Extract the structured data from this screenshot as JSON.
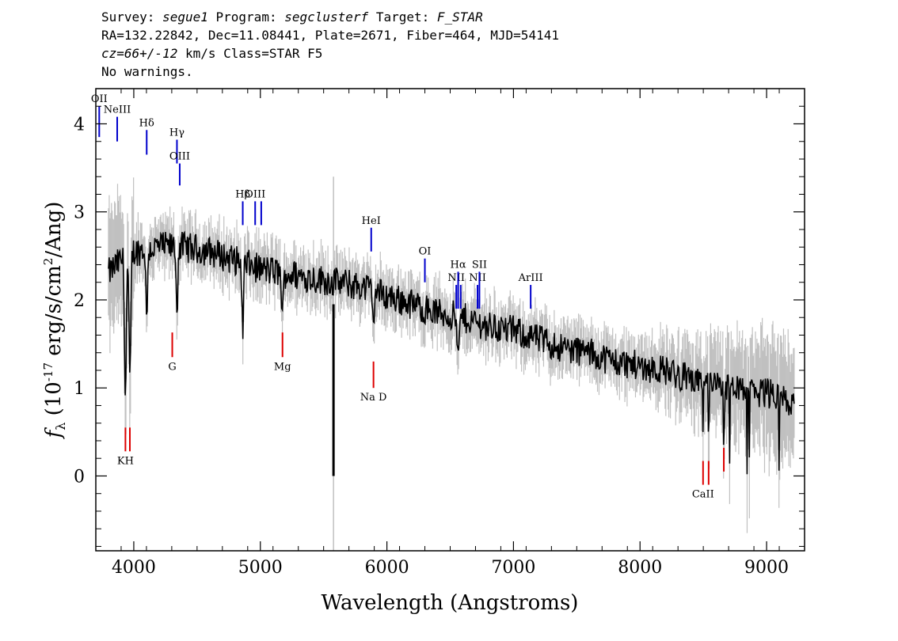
{
  "header": {
    "survey_label": "Survey:",
    "survey": "segue1",
    "program_label": "Program:",
    "program": "segclusterf",
    "target_label": "Target:",
    "target": "F_STAR",
    "line2": "RA=132.22842, Dec=11.08441, Plate=2671, Fiber=464, MJD=54141",
    "cz": "cz=66+/-12",
    "cz_rest": " km/s Class=STAR F5",
    "line4": "No warnings."
  },
  "chart_data": {
    "type": "line",
    "xlabel": "Wavelength (Angstroms)",
    "ylabel_prefix": "f",
    "ylabel_sub": "λ",
    "ylabel_main": " (10",
    "ylabel_exp": "-17",
    "ylabel_unit": " erg/s/cm",
    "ylabel_sq": "2",
    "ylabel_end": "/Ang)",
    "xlim": [
      3700,
      9300
    ],
    "ylim": [
      -0.85,
      4.4
    ],
    "x_ticks": [
      4000,
      5000,
      6000,
      7000,
      8000,
      9000
    ],
    "x_tick_labels": [
      "4000",
      "5000",
      "6000",
      "7000",
      "8000",
      "9000"
    ],
    "y_ticks": [
      0,
      1,
      2,
      3,
      4
    ],
    "y_tick_labels": [
      "0",
      "1",
      "2",
      "3",
      "4"
    ],
    "continuum": {
      "x": [
        3800,
        3900,
        4000,
        4200,
        4400,
        4600,
        4800,
        5000,
        5200,
        5400,
        5600,
        5800,
        6000,
        6200,
        6400,
        6600,
        6800,
        7000,
        7200,
        7400,
        7600,
        7800,
        8000,
        8200,
        8400,
        8600,
        8800,
        9000,
        9200
      ],
      "y": [
        2.3,
        2.45,
        2.55,
        2.6,
        2.6,
        2.55,
        2.45,
        2.35,
        2.3,
        2.25,
        2.2,
        2.15,
        2.05,
        1.95,
        1.85,
        1.8,
        1.7,
        1.65,
        1.55,
        1.45,
        1.4,
        1.3,
        1.25,
        1.2,
        1.1,
        1.05,
        0.95,
        0.95,
        0.85
      ]
    },
    "emission_lines": [
      {
        "label": "OII",
        "x": 3727,
        "y0": 3.85,
        "y1": 4.2,
        "color": "#0000cc"
      },
      {
        "label": "NeIII",
        "x": 3869,
        "y0": 3.8,
        "y1": 4.08,
        "color": "#0000cc"
      },
      {
        "label": "Hδ",
        "x": 4102,
        "y0": 3.65,
        "y1": 3.93,
        "color": "#0000cc"
      },
      {
        "label": "Hγ",
        "x": 4341,
        "y0": 3.55,
        "y1": 3.82,
        "color": "#0000cc"
      },
      {
        "label": "OIII",
        "x": 4363,
        "y0": 3.3,
        "y1": 3.55,
        "color": "#0000cc"
      },
      {
        "label": "Hβ",
        "x": 4861,
        "y0": 2.85,
        "y1": 3.12,
        "color": "#0000cc"
      },
      {
        "label": "OIII",
        "x": 4959,
        "y0": 2.85,
        "y1": 3.12,
        "color": "#0000cc"
      },
      {
        "label": "",
        "x": 5007,
        "y0": 2.85,
        "y1": 3.12,
        "color": "#0000cc"
      },
      {
        "label": "HeI",
        "x": 5876,
        "y0": 2.55,
        "y1": 2.82,
        "color": "#0000cc"
      },
      {
        "label": "OI",
        "x": 6300,
        "y0": 2.2,
        "y1": 2.47,
        "color": "#0000cc"
      },
      {
        "label": "NII",
        "x": 6548,
        "y0": 1.9,
        "y1": 2.17,
        "color": "#0000cc"
      },
      {
        "label": "Hα",
        "x": 6563,
        "y0": 1.9,
        "y1": 2.32,
        "color": "#0000cc"
      },
      {
        "label": "",
        "x": 6583,
        "y0": 1.9,
        "y1": 2.17,
        "color": "#0000cc"
      },
      {
        "label": "NII",
        "x": 6716,
        "y0": 1.9,
        "y1": 2.17,
        "color": "#0000cc"
      },
      {
        "label": "SII",
        "x": 6731,
        "y0": 1.9,
        "y1": 2.32,
        "color": "#0000cc"
      },
      {
        "label": "ArIII",
        "x": 7136,
        "y0": 1.9,
        "y1": 2.17,
        "color": "#0000cc"
      }
    ],
    "absorption_lines": [
      {
        "label": "KH",
        "x": 3934,
        "y0": 0.28,
        "y1": 0.55,
        "color": "#dd0000"
      },
      {
        "label": "",
        "x": 3969,
        "y0": 0.28,
        "y1": 0.55,
        "color": "#dd0000"
      },
      {
        "label": "G",
        "x": 4304,
        "y0": 1.35,
        "y1": 1.63,
        "color": "#dd0000"
      },
      {
        "label": "Mg",
        "x": 5175,
        "y0": 1.35,
        "y1": 1.63,
        "color": "#dd0000"
      },
      {
        "label": "Na D",
        "x": 5894,
        "y0": 1.0,
        "y1": 1.3,
        "color": "#dd0000"
      },
      {
        "label": "CaII",
        "x": 8498,
        "y0": -0.1,
        "y1": 0.17,
        "color": "#dd0000"
      },
      {
        "label": "",
        "x": 8542,
        "y0": -0.1,
        "y1": 0.17,
        "color": "#dd0000"
      },
      {
        "label": "",
        "x": 8662,
        "y0": 0.05,
        "y1": 0.32,
        "color": "#dd0000"
      }
    ],
    "colors": {
      "flux": "#000000",
      "error_band": "#c0c0c0",
      "emission": "#0000cc",
      "absorption": "#dd0000"
    }
  }
}
